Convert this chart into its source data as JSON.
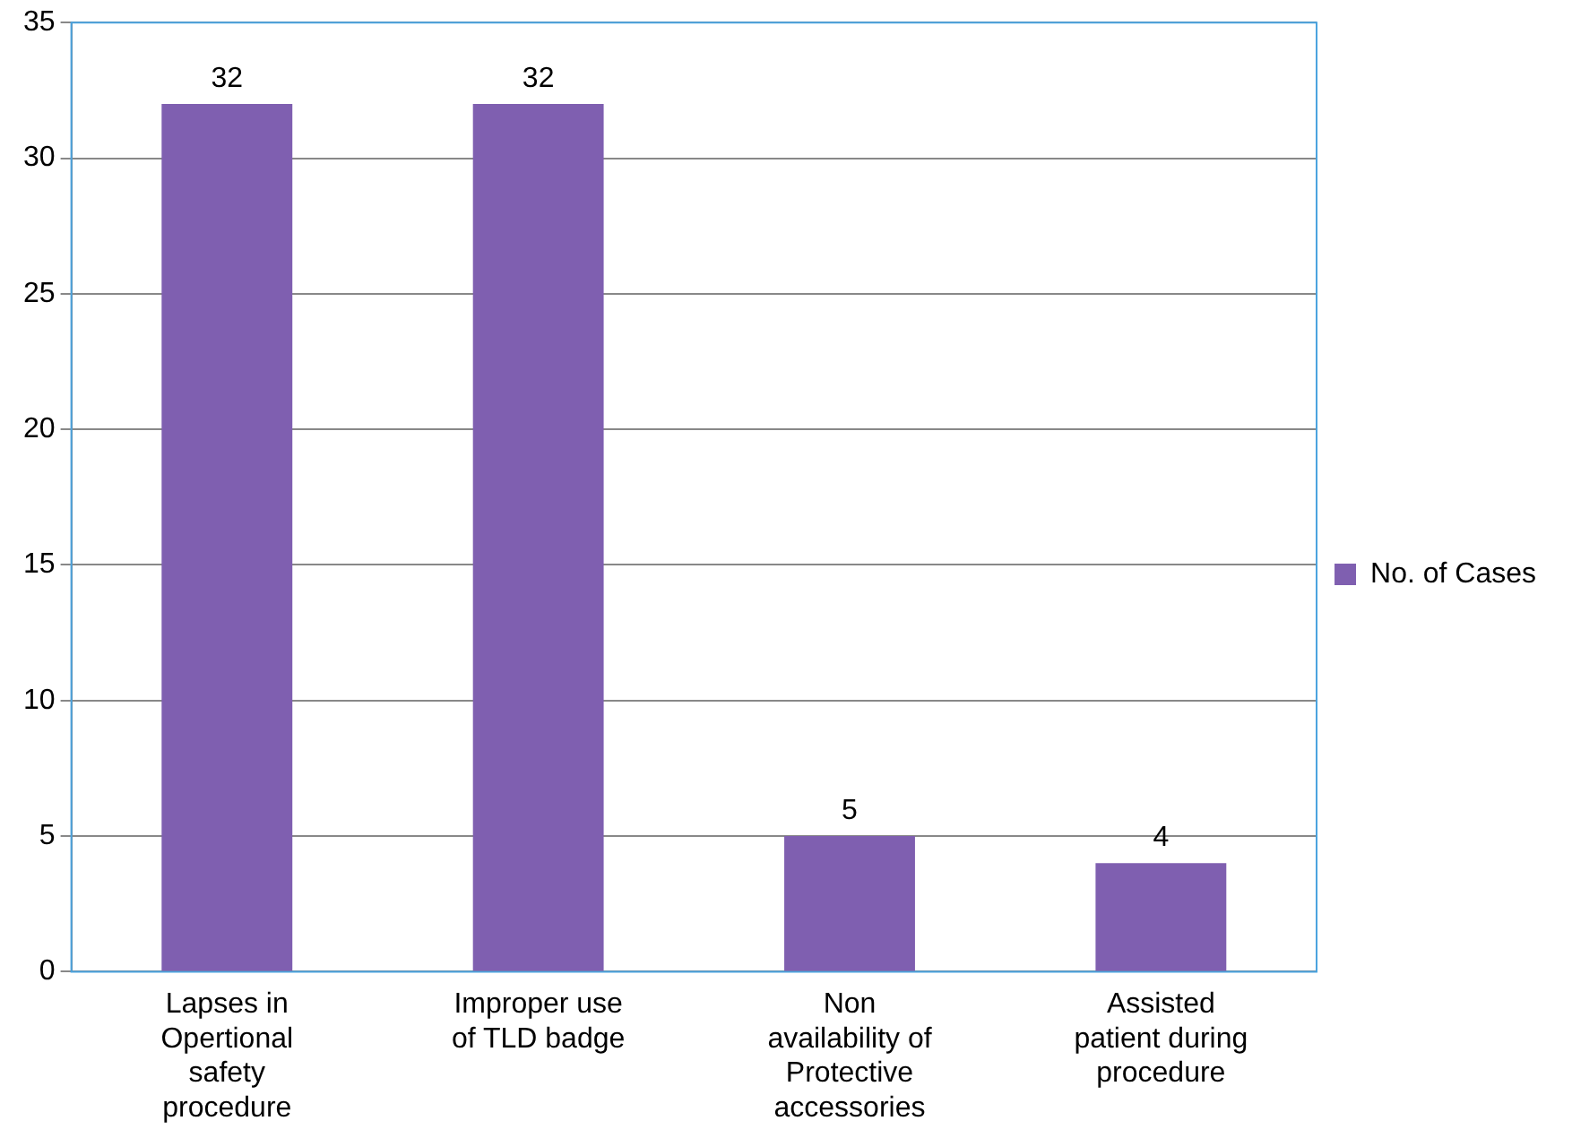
{
  "chart_data": {
    "type": "bar",
    "categories": [
      "Lapses in Opertional safety procedure",
      "Improper use of TLD badge",
      "Non availability of Protective accessories",
      "Assisted patient during procedure"
    ],
    "series": [
      {
        "name": "No. of Cases",
        "color": "#7f5fb0",
        "values": [
          32,
          32,
          5,
          4
        ]
      }
    ],
    "ylim": [
      0,
      35
    ],
    "yticks": [
      0,
      5,
      10,
      15,
      20,
      25,
      30,
      35
    ],
    "grid": "y",
    "legend": "right",
    "data_labels": true
  }
}
